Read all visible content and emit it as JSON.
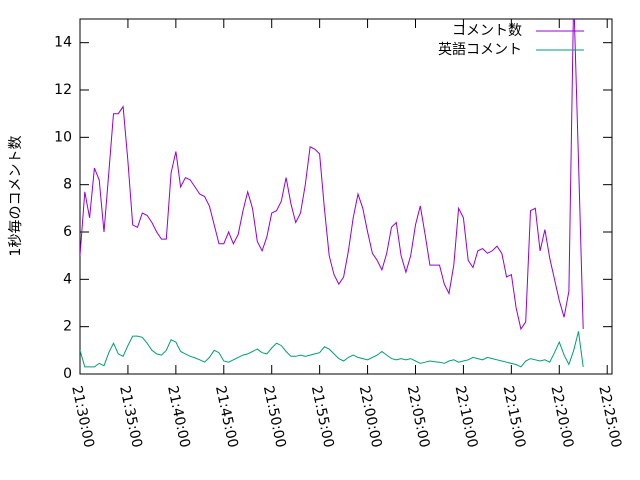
{
  "chart_data": {
    "type": "line",
    "ylabel": "1秒毎のコメント数",
    "x": [
      "21:30:00",
      "21:30:30",
      "21:31:00",
      "21:31:30",
      "21:32:00",
      "21:32:30",
      "21:33:00",
      "21:33:30",
      "21:34:00",
      "21:34:30",
      "21:35:00",
      "21:35:30",
      "21:36:00",
      "21:36:30",
      "21:37:00",
      "21:37:30",
      "21:38:00",
      "21:38:30",
      "21:39:00",
      "21:39:30",
      "21:40:00",
      "21:40:30",
      "21:41:00",
      "21:41:30",
      "21:42:00",
      "21:42:30",
      "21:43:00",
      "21:43:30",
      "21:44:00",
      "21:44:30",
      "21:45:00",
      "21:45:30",
      "21:46:00",
      "21:46:30",
      "21:47:00",
      "21:47:30",
      "21:48:00",
      "21:48:30",
      "21:49:00",
      "21:49:30",
      "21:50:00",
      "21:50:30",
      "21:51:00",
      "21:51:30",
      "21:52:00",
      "21:52:30",
      "21:53:00",
      "21:53:30",
      "21:54:00",
      "21:54:30",
      "21:55:00",
      "21:55:30",
      "21:56:00",
      "21:56:30",
      "21:57:00",
      "21:57:30",
      "21:58:00",
      "21:58:30",
      "21:59:00",
      "21:59:30",
      "22:00:00",
      "22:00:30",
      "22:01:00",
      "22:01:30",
      "22:02:00",
      "22:02:30",
      "22:03:00",
      "22:03:30",
      "22:04:00",
      "22:04:30",
      "22:05:00",
      "22:05:30",
      "22:06:00",
      "22:06:30",
      "22:07:00",
      "22:07:30",
      "22:08:00",
      "22:08:30",
      "22:09:00",
      "22:09:30",
      "22:10:00",
      "22:10:30",
      "22:11:00",
      "22:11:30",
      "22:12:00",
      "22:12:30",
      "22:13:00",
      "22:13:30",
      "22:14:00",
      "22:14:30",
      "22:15:00",
      "22:15:30",
      "22:16:00",
      "22:16:30",
      "22:17:00",
      "22:17:30",
      "22:18:00",
      "22:18:30",
      "22:19:00",
      "22:19:30",
      "22:20:00",
      "22:20:30",
      "22:21:00",
      "22:21:30",
      "22:22:00",
      "22:22:30"
    ],
    "series": [
      {
        "name": "コメント数",
        "color": "#9400d3",
        "values": [
          5.0,
          7.7,
          6.6,
          8.7,
          8.2,
          6.0,
          8.5,
          11.0,
          11.0,
          11.3,
          9.0,
          6.3,
          6.2,
          6.8,
          6.7,
          6.4,
          6.0,
          5.7,
          5.7,
          8.5,
          9.4,
          7.9,
          8.3,
          8.2,
          7.9,
          7.6,
          7.5,
          7.1,
          6.3,
          5.5,
          5.5,
          6.0,
          5.5,
          5.9,
          6.9,
          7.7,
          7.0,
          5.6,
          5.2,
          5.8,
          6.8,
          6.9,
          7.3,
          8.3,
          7.2,
          6.4,
          6.8,
          8.0,
          9.6,
          9.5,
          9.3,
          7.0,
          5.0,
          4.2,
          3.8,
          4.1,
          5.2,
          6.6,
          7.6,
          7.0,
          6.0,
          5.1,
          4.8,
          4.4,
          5.1,
          6.2,
          6.4,
          5.0,
          4.3,
          5.0,
          6.3,
          7.1,
          5.9,
          4.6,
          4.6,
          4.6,
          3.8,
          3.4,
          4.6,
          7.0,
          6.6,
          4.8,
          4.5,
          5.2,
          5.3,
          5.1,
          5.2,
          5.4,
          5.1,
          4.1,
          4.2,
          2.8,
          1.9,
          2.2,
          6.9,
          7.0,
          5.2,
          6.1,
          4.9,
          4.0,
          3.1,
          2.4,
          3.5,
          16,
          9,
          1.9
        ]
      },
      {
        "name": "英語コメント",
        "color": "#009e73",
        "values": [
          1.0,
          0.3,
          0.3,
          0.3,
          0.45,
          0.35,
          0.9,
          1.3,
          0.85,
          0.75,
          1.2,
          1.6,
          1.6,
          1.55,
          1.3,
          1.0,
          0.85,
          0.8,
          1.0,
          1.45,
          1.35,
          0.95,
          0.85,
          0.75,
          0.68,
          0.6,
          0.5,
          0.7,
          1.0,
          0.9,
          0.55,
          0.5,
          0.6,
          0.7,
          0.8,
          0.85,
          0.95,
          1.05,
          0.9,
          0.85,
          1.1,
          1.3,
          1.2,
          0.95,
          0.75,
          0.75,
          0.8,
          0.75,
          0.8,
          0.85,
          0.9,
          1.15,
          1.05,
          0.85,
          0.65,
          0.55,
          0.7,
          0.8,
          0.7,
          0.65,
          0.6,
          0.7,
          0.8,
          0.95,
          0.8,
          0.65,
          0.6,
          0.65,
          0.6,
          0.65,
          0.55,
          0.45,
          0.5,
          0.55,
          0.52,
          0.5,
          0.45,
          0.55,
          0.6,
          0.5,
          0.55,
          0.6,
          0.7,
          0.65,
          0.6,
          0.7,
          0.65,
          0.6,
          0.55,
          0.5,
          0.45,
          0.4,
          0.3,
          0.55,
          0.65,
          0.6,
          0.55,
          0.6,
          0.5,
          0.9,
          1.35,
          0.8,
          0.4,
          1.0,
          1.8,
          0.3
        ]
      }
    ],
    "xlim": [
      "21:30:00",
      "22:25:30"
    ],
    "xticks": [
      "21:30:00",
      "21:35:00",
      "21:40:00",
      "21:45:00",
      "21:50:00",
      "21:55:00",
      "22:00:00",
      "22:05:00",
      "22:10:00",
      "22:15:00",
      "22:20:00",
      "22:25:00"
    ],
    "ylim": [
      0,
      15
    ],
    "yticks": [
      0,
      2,
      4,
      6,
      8,
      10,
      12,
      14
    ],
    "legend": "top-right"
  }
}
